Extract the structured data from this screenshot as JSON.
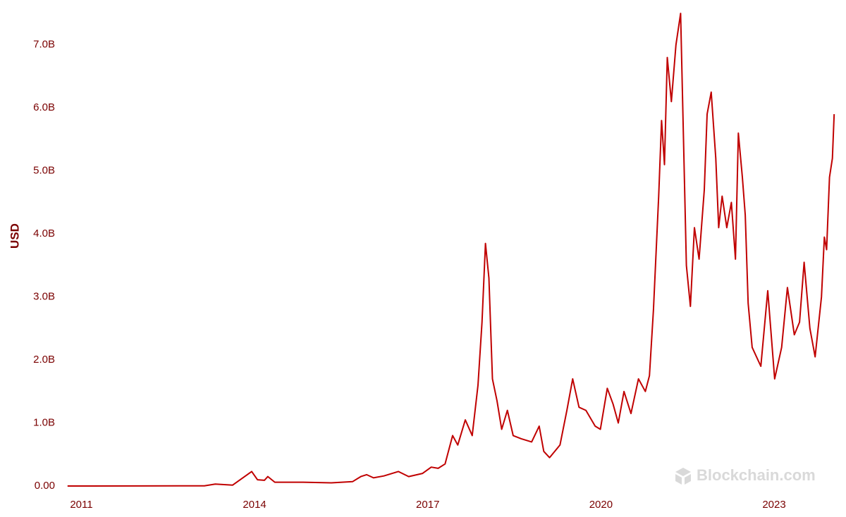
{
  "chart_data": {
    "type": "line",
    "y_label": "USD",
    "watermark": "Blockchain.com",
    "xlim": [
      2010.75,
      2024.05
    ],
    "xticks": [
      2011,
      2014,
      2017,
      2020,
      2023
    ],
    "ylim": [
      0,
      7500000000
    ],
    "yticks": [
      {
        "value": 0,
        "label": "0.00"
      },
      {
        "value": 1000000000,
        "label": "1.0B"
      },
      {
        "value": 2000000000,
        "label": "2.0B"
      },
      {
        "value": 3000000000,
        "label": "3.0B"
      },
      {
        "value": 4000000000,
        "label": "4.0B"
      },
      {
        "value": 5000000000,
        "label": "5.0B"
      },
      {
        "value": 6000000000,
        "label": "6.0B"
      },
      {
        "value": 7000000000,
        "label": "7.0B"
      }
    ],
    "grid": false,
    "series": [
      {
        "color": "#c00000",
        "x": [
          2010.76,
          2012.04,
          2013.13,
          2013.32,
          2013.62,
          2013.95,
          2014.05,
          2014.17,
          2014.23,
          2014.35,
          2014.84,
          2015.33,
          2015.7,
          2015.84,
          2015.94,
          2016.06,
          2016.24,
          2016.49,
          2016.67,
          2016.91,
          2017.06,
          2017.18,
          2017.3,
          2017.43,
          2017.52,
          2017.65,
          2017.77,
          2017.87,
          2017.94,
          2018.0,
          2018.06,
          2018.12,
          2018.2,
          2018.28,
          2018.38,
          2018.48,
          2018.62,
          2018.8,
          2018.93,
          2019.01,
          2019.11,
          2019.29,
          2019.41,
          2019.51,
          2019.62,
          2019.74,
          2019.9,
          2019.99,
          2020.11,
          2020.21,
          2020.3,
          2020.4,
          2020.52,
          2020.65,
          2020.77,
          2020.84,
          2020.91,
          2021.0,
          2021.05,
          2021.1,
          2021.15,
          2021.22,
          2021.3,
          2021.38,
          2021.43,
          2021.48,
          2021.55,
          2021.62,
          2021.7,
          2021.79,
          2021.84,
          2021.91,
          2021.99,
          2022.04,
          2022.1,
          2022.18,
          2022.26,
          2022.33,
          2022.38,
          2022.45,
          2022.5,
          2022.55,
          2022.62,
          2022.77,
          2022.89,
          2023.01,
          2023.13,
          2023.23,
          2023.35,
          2023.44,
          2023.52,
          2023.62,
          2023.71,
          2023.82,
          2023.87,
          2023.91,
          2023.96,
          2024.01,
          2024.04
        ],
        "values": [
          0,
          1000000,
          3000000,
          30000000,
          15000000,
          230000000,
          100000000,
          90000000,
          150000000,
          60000000,
          60000000,
          50000000,
          70000000,
          150000000,
          180000000,
          130000000,
          160000000,
          230000000,
          150000000,
          200000000,
          300000000,
          280000000,
          350000000,
          800000000,
          650000000,
          1050000000,
          800000000,
          1600000000,
          2600000000,
          3850000000,
          3300000000,
          1700000000,
          1350000000,
          900000000,
          1200000000,
          800000000,
          750000000,
          700000000,
          950000000,
          550000000,
          450000000,
          650000000,
          1200000000,
          1700000000,
          1250000000,
          1200000000,
          950000000,
          900000000,
          1550000000,
          1300000000,
          1000000000,
          1500000000,
          1150000000,
          1700000000,
          1500000000,
          1750000000,
          2800000000,
          4600000000,
          5800000000,
          5100000000,
          6800000000,
          6100000000,
          7000000000,
          7500000000,
          5500000000,
          3500000000,
          2850000000,
          4100000000,
          3600000000,
          4700000000,
          5900000000,
          6250000000,
          5200000000,
          4100000000,
          4600000000,
          4100000000,
          4500000000,
          3600000000,
          5600000000,
          4900000000,
          4300000000,
          2900000000,
          2200000000,
          1900000000,
          3100000000,
          1700000000,
          2200000000,
          3150000000,
          2400000000,
          2600000000,
          3550000000,
          2500000000,
          2050000000,
          3000000000,
          3950000000,
          3750000000,
          4900000000,
          5200000000,
          5900000000
        ]
      }
    ]
  }
}
